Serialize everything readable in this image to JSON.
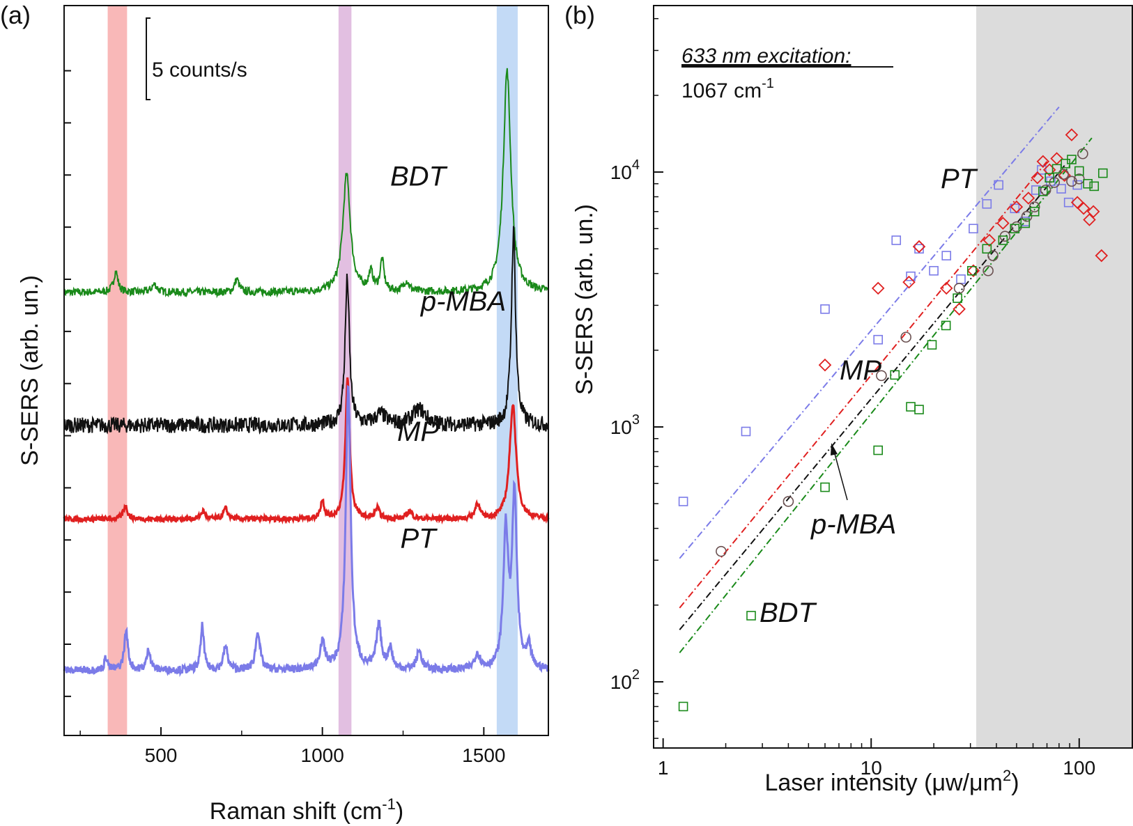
{
  "colors": {
    "BDT": "#1a8a1a",
    "p-MBA": "#111111",
    "p-MBA_marker": "#6a5050",
    "MP": "#e02020",
    "PT": "#7b7be8",
    "band_red": "#f8b0b0",
    "band_purple": "#dfb8de",
    "band_blue": "#bcd6f5",
    "shade": "#dcdcdc"
  },
  "chart_data": [
    {
      "panel": "(a)",
      "type": "line",
      "xlabel": "Raman shift (cm",
      "xlabel_sup": "-1",
      "xlabel_tail": ")",
      "ylabel": "S-SERS (arb. un.)",
      "xlim": [
        200,
        1700
      ],
      "xticks": [
        500,
        1000,
        1500
      ],
      "scale_bar": "5 counts/s",
      "bands": [
        {
          "from": 335,
          "to": 395
        },
        {
          "from": 1050,
          "to": 1090
        },
        {
          "from": 1540,
          "to": 1605
        }
      ],
      "series": [
        {
          "name": "BDT",
          "baseline": 11.5,
          "noise": 0.15,
          "peaks": [
            {
              "x": 360,
              "h": 0.8,
              "w": 8
            },
            {
              "x": 480,
              "h": 0.3,
              "w": 10
            },
            {
              "x": 735,
              "h": 0.5,
              "w": 8
            },
            {
              "x": 1075,
              "h": 4.5,
              "w": 14
            },
            {
              "x": 1150,
              "h": 0.7,
              "w": 8
            },
            {
              "x": 1185,
              "h": 1.2,
              "w": 7
            },
            {
              "x": 1260,
              "h": 0.4,
              "w": 10
            },
            {
              "x": 1572,
              "h": 8.5,
              "w": 14
            }
          ]
        },
        {
          "name": "p-MBA",
          "baseline": 6.4,
          "noise": 0.3,
          "peaks": [
            {
              "x": 1077,
              "h": 5.6,
              "w": 8
            },
            {
              "x": 1180,
              "h": 0.4,
              "w": 20
            },
            {
              "x": 1300,
              "h": 0.6,
              "w": 25
            },
            {
              "x": 1592,
              "h": 7.4,
              "w": 8
            }
          ]
        },
        {
          "name": "MP",
          "baseline": 2.8,
          "noise": 0.1,
          "peaks": [
            {
              "x": 390,
              "h": 0.5,
              "w": 8
            },
            {
              "x": 630,
              "h": 0.3,
              "w": 8
            },
            {
              "x": 700,
              "h": 0.4,
              "w": 8
            },
            {
              "x": 1000,
              "h": 0.7,
              "w": 7
            },
            {
              "x": 1078,
              "h": 5.4,
              "w": 8
            },
            {
              "x": 1170,
              "h": 0.4,
              "w": 8
            },
            {
              "x": 1270,
              "h": 0.3,
              "w": 10
            },
            {
              "x": 1480,
              "h": 0.6,
              "w": 8
            },
            {
              "x": 1590,
              "h": 4.4,
              "w": 12
            }
          ]
        },
        {
          "name": "PT",
          "baseline": -3.0,
          "noise": 0.15,
          "peaks": [
            {
              "x": 330,
              "h": 0.5,
              "w": 6
            },
            {
              "x": 392,
              "h": 1.5,
              "w": 7
            },
            {
              "x": 462,
              "h": 0.8,
              "w": 7
            },
            {
              "x": 628,
              "h": 1.7,
              "w": 6
            },
            {
              "x": 700,
              "h": 0.9,
              "w": 8
            },
            {
              "x": 800,
              "h": 1.5,
              "w": 8
            },
            {
              "x": 1000,
              "h": 1.0,
              "w": 10
            },
            {
              "x": 1080,
              "h": 10.9,
              "w": 9
            },
            {
              "x": 1175,
              "h": 1.7,
              "w": 9
            },
            {
              "x": 1210,
              "h": 0.8,
              "w": 8
            },
            {
              "x": 1300,
              "h": 0.7,
              "w": 10
            },
            {
              "x": 1480,
              "h": 0.6,
              "w": 10
            },
            {
              "x": 1568,
              "h": 5.2,
              "w": 9
            },
            {
              "x": 1595,
              "h": 6.6,
              "w": 9
            },
            {
              "x": 1640,
              "h": 0.8,
              "w": 8
            }
          ]
        }
      ]
    },
    {
      "panel": "(b)",
      "type": "scatter",
      "xscale": "log",
      "yscale": "log",
      "xlim": [
        0.9,
        180
      ],
      "ylim": [
        55,
        45000
      ],
      "xticks": [
        1,
        10,
        100
      ],
      "xtick_labels": [
        "1",
        "10",
        "100"
      ],
      "yticks": [
        100,
        1000,
        10000
      ],
      "ytick_labels": [
        {
          "base": "10",
          "exp": "2"
        },
        {
          "base": "10",
          "exp": "3"
        },
        {
          "base": "10",
          "exp": "4"
        }
      ],
      "xlabel": "Laser intensity (μw/μm",
      "xlabel_sup": "2",
      "xlabel_tail": ")",
      "ylabel": "S-SERS (arb. un.)",
      "annotation_title": "633 nm excitation:",
      "annotation_line": "1067 cm",
      "annotation_sup": "-1",
      "shaded_region": {
        "from": 32,
        "to": 180
      },
      "arrow_label": "p-MBA",
      "series": [
        {
          "name": "PT",
          "marker": "square",
          "points": [
            [
              1.25,
              510
            ],
            [
              2.5,
              960
            ],
            [
              6,
              2900
            ],
            [
              10.8,
              2200
            ],
            [
              13.2,
              5400
            ],
            [
              15.5,
              3900
            ],
            [
              17,
              5000
            ],
            [
              20,
              4100
            ],
            [
              23,
              4700
            ],
            [
              27,
              3800
            ],
            [
              31,
              6000
            ],
            [
              36,
              7500
            ],
            [
              41,
              8900
            ],
            [
              49,
              7200
            ],
            [
              55,
              6400
            ],
            [
              62,
              8500
            ],
            [
              66,
              10200
            ],
            [
              73,
              9200
            ],
            [
              82,
              8600
            ],
            [
              89,
              7600
            ],
            [
              98,
              8900
            ]
          ],
          "fit": {
            "x1": 1.2,
            "x2": 80,
            "y1": 305,
            "y2": 18000
          }
        },
        {
          "name": "MP",
          "marker": "diamond",
          "points": [
            [
              6,
              1750
            ],
            [
              10.8,
              3500
            ],
            [
              15.2,
              3700
            ],
            [
              17,
              5100
            ],
            [
              23,
              3500
            ],
            [
              26.5,
              2900
            ],
            [
              31,
              4100
            ],
            [
              37,
              5400
            ],
            [
              43,
              6300
            ],
            [
              50,
              7300
            ],
            [
              57,
              7900
            ],
            [
              63,
              9500
            ],
            [
              67,
              11000
            ],
            [
              72,
              10200
            ],
            [
              78,
              11300
            ],
            [
              85,
              9700
            ],
            [
              92,
              14000
            ],
            [
              98,
              7600
            ],
            [
              105,
              7200
            ],
            [
              112,
              6500
            ],
            [
              117,
              7000
            ],
            [
              128,
              4700
            ]
          ],
          "fit": {
            "x1": 1.2,
            "x2": 70,
            "y1": 195,
            "y2": 11000
          }
        },
        {
          "name": "p-MBA",
          "marker": "circle",
          "points": [
            [
              1.9,
              325
            ],
            [
              4,
              510
            ],
            [
              11.2,
              1590
            ],
            [
              14.7,
              2250
            ],
            [
              26.5,
              3500
            ],
            [
              36.5,
              4100
            ],
            [
              38.5,
              4700
            ],
            [
              44,
              5600
            ],
            [
              50,
              6100
            ],
            [
              56,
              6700
            ],
            [
              61,
              7300
            ],
            [
              69,
              8500
            ],
            [
              76,
              9100
            ],
            [
              84,
              9800
            ],
            [
              92,
              9200
            ],
            [
              100,
              9400
            ],
            [
              104,
              11800
            ]
          ],
          "fit": {
            "x1": 1.2,
            "x2": 85,
            "y1": 160,
            "y2": 10600
          }
        },
        {
          "name": "BDT",
          "marker": "square",
          "points": [
            [
              1.25,
              80
            ],
            [
              6,
              580
            ],
            [
              10.8,
              810
            ],
            [
              13,
              1600
            ],
            [
              15.5,
              1200
            ],
            [
              17,
              1170
            ],
            [
              19.6,
              2100
            ],
            [
              22.9,
              2500
            ],
            [
              26,
              3200
            ],
            [
              30.5,
              4100
            ],
            [
              36,
              5000
            ],
            [
              43,
              5400
            ],
            [
              49,
              6000
            ],
            [
              55,
              6300
            ],
            [
              61,
              7000
            ],
            [
              67,
              8400
            ],
            [
              72,
              9500
            ],
            [
              78,
              10300
            ],
            [
              86,
              10800
            ],
            [
              92,
              11200
            ],
            [
              100,
              10100
            ],
            [
              110,
              9000
            ],
            [
              118,
              8800
            ],
            [
              130,
              9900
            ]
          ],
          "fit": {
            "x1": 1.2,
            "x2": 115,
            "y1": 130,
            "y2": 13600
          }
        }
      ],
      "labels": [
        {
          "series": "PT",
          "text": "PT"
        },
        {
          "series": "MP",
          "text": "MP"
        },
        {
          "series": "BDT",
          "text": "BDT"
        }
      ]
    }
  ]
}
